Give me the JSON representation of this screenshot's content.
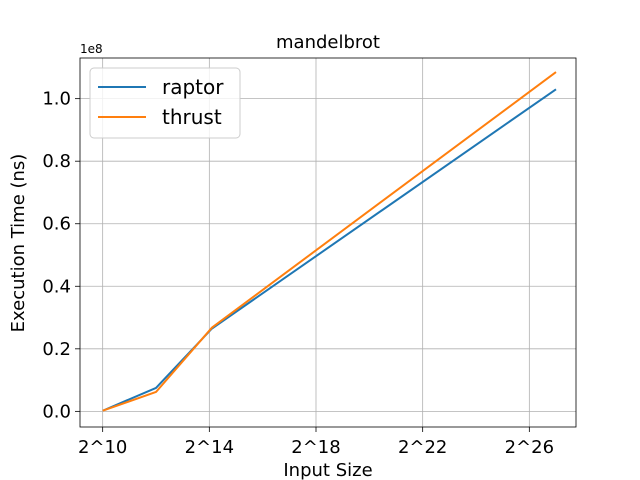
{
  "chart_data": {
    "type": "line",
    "title": "mandelbrot",
    "xlabel": "Input Size",
    "ylabel": "Execution Time (ns)",
    "y_offset_label": "1e8",
    "xscale": "log2",
    "x_ticks": [
      {
        "exp": 10,
        "label": "2^10"
      },
      {
        "exp": 14,
        "label": "2^14"
      },
      {
        "exp": 18,
        "label": "2^18"
      },
      {
        "exp": 22,
        "label": "2^22"
      },
      {
        "exp": 26,
        "label": "2^26"
      }
    ],
    "y_ticks": [
      {
        "value": 0.0,
        "label": "0.0"
      },
      {
        "value": 0.2,
        "label": "0.2"
      },
      {
        "value": 0.4,
        "label": "0.4"
      },
      {
        "value": 0.6,
        "label": "0.6"
      },
      {
        "value": 0.8,
        "label": "0.8"
      },
      {
        "value": 1.0,
        "label": "1.0"
      }
    ],
    "xlim_exp": [
      9.15,
      27.75
    ],
    "ylim": [
      -0.05,
      1.13
    ],
    "grid": true,
    "legend_position": "top-left",
    "x_exp": [
      10,
      12,
      14.1,
      27
    ],
    "series": [
      {
        "name": "raptor",
        "color": "#1f77b4",
        "values": [
          0.002,
          0.075,
          0.265,
          1.03
        ]
      },
      {
        "name": "thrust",
        "color": "#ff7f0e",
        "values": [
          0.002,
          0.062,
          0.268,
          1.085
        ]
      }
    ]
  }
}
